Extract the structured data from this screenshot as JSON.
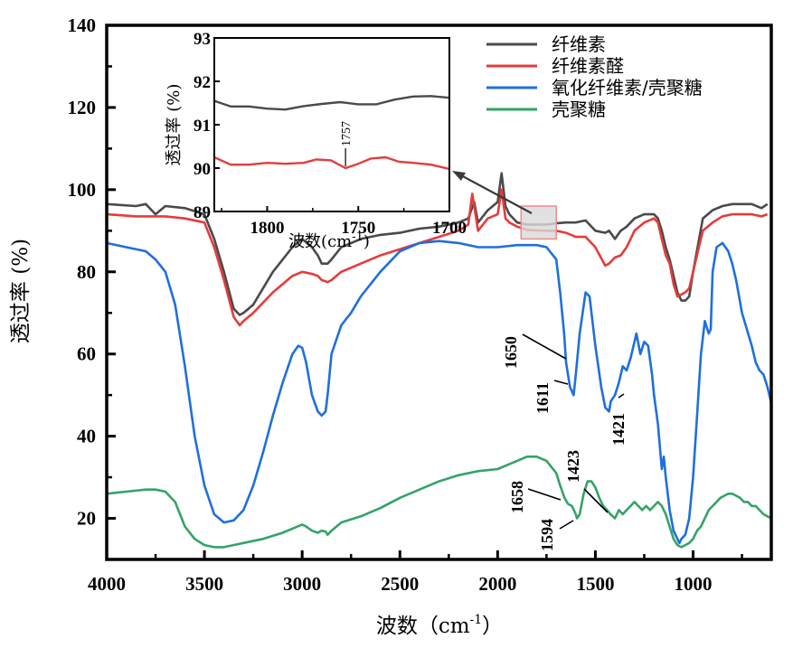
{
  "chart_data": {
    "type": "line",
    "title": "",
    "xlabel": "波数（cm",
    "xlabel_sup": "-1",
    "xlabel_close": "）",
    "ylabel": "透过率 (%)",
    "xlim": [
      4000,
      600
    ],
    "ylim": [
      10,
      140
    ],
    "x_ticks": [
      "4000",
      "3500",
      "3000",
      "2500",
      "2000",
      "1500",
      "1000"
    ],
    "x_tick_values": [
      4000,
      3500,
      3000,
      2500,
      2000,
      1500,
      1000
    ],
    "y_ticks": [
      "140",
      "120",
      "100",
      "80",
      "60",
      "40",
      "20"
    ],
    "y_tick_values": [
      140,
      120,
      100,
      80,
      60,
      40,
      20
    ],
    "legend_position": "top-right",
    "series": [
      {
        "name": "纤维素",
        "color": "#4a4a4a",
        "x": [
          4000,
          3850,
          3800,
          3750,
          3700,
          3600,
          3500,
          3450,
          3400,
          3350,
          3320,
          3300,
          3250,
          3150,
          3050,
          3000,
          2950,
          2920,
          2900,
          2870,
          2850,
          2800,
          2700,
          2600,
          2500,
          2400,
          2300,
          2200,
          2150,
          2120,
          2100,
          2050,
          2000,
          1980,
          1960,
          1940,
          1900,
          1850,
          1800,
          1750,
          1700,
          1650,
          1600,
          1550,
          1500,
          1450,
          1430,
          1400,
          1370,
          1340,
          1320,
          1300,
          1250,
          1200,
          1180,
          1160,
          1140,
          1120,
          1100,
          1080,
          1060,
          1040,
          1020,
          1000,
          950,
          900,
          850,
          800,
          700,
          650,
          620
        ],
        "y": [
          96.5,
          96,
          96.5,
          94,
          96,
          95.5,
          94,
          88,
          80,
          71,
          69.5,
          70,
          72,
          80,
          86,
          88,
          86,
          84,
          82,
          82,
          83,
          86,
          88,
          89,
          89.5,
          90.5,
          91,
          92,
          93,
          97,
          92,
          95,
          97,
          104,
          96,
          94,
          92,
          91.5,
          91.5,
          91.5,
          91.8,
          92,
          92,
          92.5,
          90,
          89.5,
          90,
          88,
          90,
          91,
          92,
          93,
          94,
          94,
          93,
          90,
          86,
          83,
          79,
          75,
          73,
          73,
          74,
          80,
          93,
          95,
          96,
          96.5,
          96.5,
          95.5,
          96.5
        ]
      },
      {
        "name": "纤维素醛",
        "color": "#e63b3b",
        "x": [
          4000,
          3850,
          3800,
          3750,
          3700,
          3600,
          3500,
          3450,
          3400,
          3350,
          3320,
          3300,
          3250,
          3150,
          3050,
          3000,
          2950,
          2920,
          2900,
          2870,
          2850,
          2800,
          2700,
          2600,
          2500,
          2400,
          2300,
          2200,
          2150,
          2130,
          2100,
          2050,
          2000,
          1980,
          1960,
          1940,
          1900,
          1850,
          1800,
          1750,
          1700,
          1650,
          1600,
          1550,
          1500,
          1450,
          1430,
          1400,
          1370,
          1340,
          1320,
          1300,
          1250,
          1200,
          1180,
          1160,
          1140,
          1120,
          1100,
          1080,
          1060,
          1040,
          1020,
          1000,
          950,
          900,
          850,
          800,
          700,
          650,
          620
        ],
        "y": [
          94,
          93.5,
          93.5,
          93.5,
          93.5,
          93,
          92,
          86,
          78,
          69,
          67,
          68,
          70,
          75,
          79,
          80,
          79.5,
          79,
          78,
          77.5,
          78,
          80,
          82,
          84,
          85.5,
          87,
          88.5,
          90,
          91.5,
          99,
          90,
          93,
          94,
          100,
          93,
          92,
          91,
          90.2,
          90.1,
          90,
          90,
          89.5,
          88.5,
          88.5,
          86,
          81.5,
          82,
          83.5,
          84,
          86,
          88,
          90,
          92,
          93,
          92,
          88,
          84,
          82,
          77,
          74,
          74.5,
          75,
          76,
          80,
          90,
          92,
          93.5,
          94,
          94,
          93.5,
          94
        ]
      },
      {
        "name": "氧化纤维素/壳聚糖",
        "color": "#1f6fde",
        "x": [
          4000,
          3900,
          3800,
          3750,
          3700,
          3650,
          3600,
          3550,
          3500,
          3450,
          3400,
          3350,
          3300,
          3250,
          3200,
          3150,
          3100,
          3050,
          3020,
          3000,
          2980,
          2950,
          2920,
          2900,
          2880,
          2870,
          2850,
          2800,
          2750,
          2700,
          2600,
          2500,
          2400,
          2300,
          2200,
          2100,
          2000,
          1900,
          1800,
          1750,
          1700,
          1680,
          1660,
          1650,
          1630,
          1611,
          1600,
          1580,
          1550,
          1530,
          1500,
          1470,
          1450,
          1430,
          1421,
          1400,
          1380,
          1360,
          1340,
          1320,
          1300,
          1290,
          1270,
          1250,
          1230,
          1210,
          1200,
          1180,
          1160,
          1150,
          1140,
          1120,
          1100,
          1080,
          1070,
          1060,
          1040,
          1020,
          1000,
          980,
          960,
          940,
          920,
          910,
          900,
          880,
          850,
          820,
          800,
          780,
          750,
          700,
          680,
          660,
          640,
          620,
          600
        ],
        "y": [
          87,
          86,
          85,
          83,
          80,
          72,
          57,
          40,
          28,
          21,
          19,
          19.5,
          22,
          28,
          36,
          45,
          53,
          60,
          62,
          61.5,
          58,
          50,
          46,
          45,
          46,
          50,
          60,
          67,
          70,
          74,
          80,
          85,
          87,
          87.5,
          87,
          86,
          86,
          86.5,
          86.5,
          86,
          83,
          75,
          65,
          58,
          52,
          50,
          55,
          65,
          75,
          74,
          62,
          52,
          47,
          46,
          48.5,
          50,
          53,
          57,
          56,
          59,
          63,
          65,
          60,
          63,
          62,
          55,
          50,
          43,
          32,
          35,
          30,
          22,
          17,
          15,
          14,
          15,
          16,
          20,
          30,
          45,
          60,
          68,
          65,
          66,
          80,
          86,
          87,
          85,
          82,
          78,
          70,
          62,
          58,
          56,
          55,
          52,
          48
        ]
      },
      {
        "name": "壳聚糖",
        "color": "#35a368",
        "x": [
          4000,
          3900,
          3800,
          3750,
          3700,
          3650,
          3600,
          3550,
          3500,
          3450,
          3400,
          3350,
          3300,
          3200,
          3100,
          3050,
          3000,
          2980,
          2950,
          2920,
          2900,
          2880,
          2870,
          2850,
          2800,
          2700,
          2600,
          2500,
          2400,
          2300,
          2200,
          2100,
          2000,
          1950,
          1900,
          1850,
          1800,
          1750,
          1700,
          1680,
          1658,
          1640,
          1620,
          1600,
          1594,
          1580,
          1560,
          1540,
          1520,
          1500,
          1480,
          1460,
          1440,
          1423,
          1400,
          1380,
          1360,
          1340,
          1320,
          1300,
          1280,
          1260,
          1240,
          1220,
          1200,
          1180,
          1160,
          1140,
          1120,
          1100,
          1080,
          1060,
          1040,
          1020,
          1000,
          980,
          960,
          940,
          920,
          900,
          880,
          860,
          840,
          820,
          800,
          780,
          760,
          740,
          720,
          700,
          680,
          660,
          640,
          620,
          600
        ],
        "y": [
          26,
          26.5,
          27,
          27,
          26.5,
          24,
          18,
          15,
          13.5,
          13,
          13,
          13.5,
          14,
          15,
          16.5,
          17.5,
          18.5,
          18,
          17,
          16.5,
          17,
          16.8,
          16,
          17,
          19,
          20.5,
          22.5,
          25,
          27,
          29,
          30.5,
          31.5,
          32,
          33,
          34,
          35,
          35,
          34,
          31,
          28,
          25,
          23.5,
          23,
          21,
          20,
          21,
          26,
          29,
          29,
          27.5,
          25,
          23,
          22,
          21,
          20,
          22,
          21,
          22,
          23,
          24,
          23,
          22,
          23,
          22,
          23,
          24,
          23,
          21,
          18,
          15,
          13.5,
          13,
          13.5,
          14,
          15,
          17,
          18,
          20,
          22,
          23,
          24,
          25,
          25.5,
          26,
          26,
          25.5,
          25,
          24,
          24,
          23,
          23,
          22,
          21,
          20.5,
          20
        ]
      }
    ],
    "inset": {
      "xlabel": "波数(cm",
      "xlabel_sup": "-1",
      "xlabel_close": ")",
      "ylabel": "透过率 (%)",
      "xlim": [
        1829,
        1700
      ],
      "ylim": [
        89,
        93
      ],
      "x_ticks": [
        "1800",
        "1750",
        "1700"
      ],
      "x_tick_values": [
        1800,
        1750,
        1700
      ],
      "y_ticks": [
        "93",
        "92",
        "91",
        "90",
        "89"
      ],
      "y_tick_values": [
        93,
        92,
        91,
        90,
        89
      ],
      "series": [
        {
          "name": "纤维素",
          "color": "#4a4a4a",
          "x": [
            1829,
            1820,
            1810,
            1800,
            1790,
            1780,
            1770,
            1760,
            1750,
            1740,
            1730,
            1720,
            1710,
            1700
          ],
          "y": [
            91.55,
            91.42,
            91.42,
            91.37,
            91.35,
            91.43,
            91.48,
            91.52,
            91.47,
            91.47,
            91.58,
            91.65,
            91.66,
            91.62
          ]
        },
        {
          "name": "纤维素醛",
          "color": "#e63b3b",
          "x": [
            1829,
            1820,
            1810,
            1800,
            1790,
            1780,
            1773,
            1765,
            1757,
            1750,
            1743,
            1735,
            1728,
            1720,
            1710,
            1700
          ],
          "y": [
            90.25,
            90.08,
            90.08,
            90.12,
            90.1,
            90.12,
            90.2,
            90.18,
            90.0,
            90.1,
            90.22,
            90.25,
            90.15,
            90.12,
            90.08,
            89.98
          ]
        }
      ],
      "annotations": [
        {
          "text": "1757",
          "x": 1757,
          "y": 90.0
        }
      ]
    },
    "annotations": [
      {
        "text": "1650",
        "x": 1650,
        "y": 58,
        "series": "氧化纤维素/壳聚糖"
      },
      {
        "text": "1611",
        "x": 1611,
        "y": 50,
        "series": "氧化纤维素/壳聚糖"
      },
      {
        "text": "1421",
        "x": 1421,
        "y": 48.5,
        "series": "氧化纤维素/壳聚糖"
      },
      {
        "text": "1658",
        "x": 1658,
        "y": 25,
        "series": "壳聚糖"
      },
      {
        "text": "1594",
        "x": 1594,
        "y": 20,
        "series": "壳聚糖"
      },
      {
        "text": "1423",
        "x": 1423,
        "y": 20,
        "series": "壳聚糖"
      }
    ],
    "highlight_region": {
      "x": [
        1880,
        1700
      ],
      "y": [
        88,
        96
      ]
    }
  }
}
